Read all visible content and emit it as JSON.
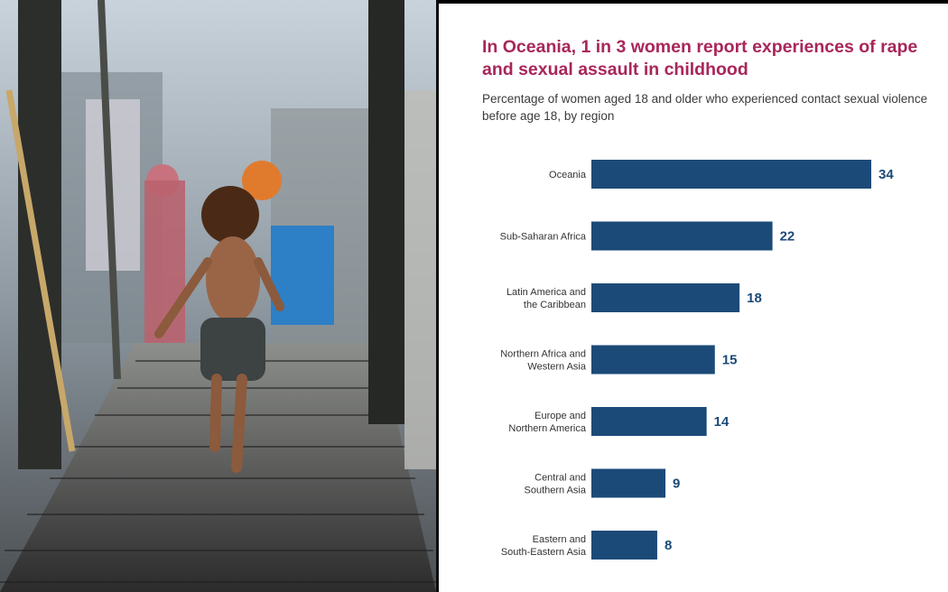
{
  "photo": {
    "description_icon": "photo-child-running-on-boardwalk"
  },
  "chart_panel": {
    "title": "In Oceania, 1 in 3 women report experiences of rape and sexual assault in childhood",
    "subtitle": "Percentage of women aged 18 and older who experienced contact sexual violence before age 18, by region"
  },
  "chart_data": {
    "type": "bar",
    "orientation": "horizontal",
    "title": "In Oceania, 1 in 3 women report experiences of rape and sexual assault in childhood",
    "subtitle": "Percentage of women aged 18 and older who experienced contact sexual violence before age 18, by region",
    "categories": [
      [
        "Oceania"
      ],
      [
        "Sub-Saharan Africa"
      ],
      [
        "Latin America and",
        "the Caribbean"
      ],
      [
        "Northern Africa and",
        "Western Asia"
      ],
      [
        "Europe and",
        "Northern America"
      ],
      [
        "Central and",
        "Southern Asia"
      ],
      [
        "Eastern and",
        "South-Eastern Asia"
      ]
    ],
    "values": [
      34,
      22,
      18,
      15,
      14,
      9,
      8
    ],
    "xlim": [
      0,
      34
    ],
    "grid": false,
    "legend": "none",
    "bar_color": "#1c4a78",
    "value_label_color": "#1c4a78"
  },
  "colors": {
    "title": "#a8265a",
    "bar": "#1c4a78"
  }
}
